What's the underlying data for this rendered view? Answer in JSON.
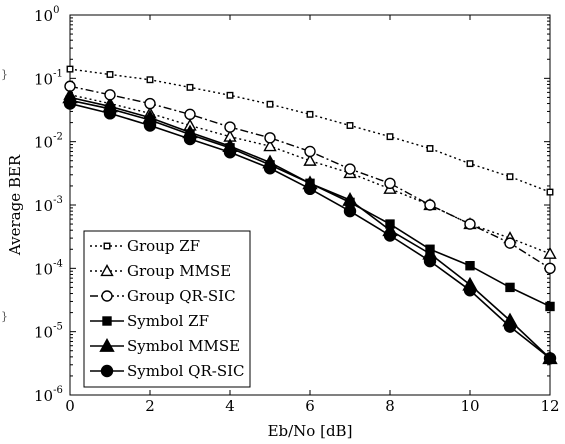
{
  "chart_data": {
    "type": "line",
    "xlabel": "Eb/No [dB]",
    "ylabel": "Average BER",
    "xlim": [
      0,
      12
    ],
    "ylim": [
      1e-06,
      1
    ],
    "yscale": "log",
    "grid": false,
    "legend_placement": "bottom-left",
    "xticks": [
      0,
      2,
      4,
      6,
      8,
      10,
      12
    ],
    "yticks": [
      {
        "base": "10",
        "exp": "-6",
        "value": 1e-06
      },
      {
        "base": "10",
        "exp": "-5",
        "value": 1e-05
      },
      {
        "base": "10",
        "exp": "-4",
        "value": 0.0001
      },
      {
        "base": "10",
        "exp": "-3",
        "value": 0.001
      },
      {
        "base": "10",
        "exp": "-2",
        "value": 0.01
      },
      {
        "base": "10",
        "exp": "-1",
        "value": 0.1
      },
      {
        "base": "10",
        "exp": "0",
        "value": 1
      }
    ],
    "x": [
      0,
      1,
      2,
      3,
      4,
      5,
      6,
      7,
      8,
      9,
      10,
      11,
      12
    ],
    "series": [
      {
        "name": "Group ZF",
        "line": "dotted",
        "marker": "square-open",
        "values": [
          0.14,
          0.115,
          0.095,
          0.072,
          0.054,
          0.039,
          0.027,
          0.018,
          0.012,
          0.0078,
          0.0045,
          0.0028,
          0.0016
        ]
      },
      {
        "name": "Group MMSE",
        "line": "dotted",
        "marker": "triangle-open",
        "values": [
          0.055,
          0.04,
          0.028,
          0.018,
          0.012,
          0.0085,
          0.005,
          0.0032,
          0.0018,
          0.001,
          0.0005,
          0.0003,
          0.00017
        ]
      },
      {
        "name": "Group QR-SIC",
        "line": "dashdot",
        "marker": "circle-open",
        "values": [
          0.075,
          0.055,
          0.04,
          0.027,
          0.017,
          0.0115,
          0.007,
          0.0037,
          0.0022,
          0.001,
          0.0005,
          0.00025,
          0.0001
        ]
      },
      {
        "name": "Symbol ZF",
        "line": "solid",
        "marker": "square-filled",
        "values": [
          0.045,
          0.033,
          0.022,
          0.013,
          0.008,
          0.0043,
          0.0022,
          0.0011,
          0.0005,
          0.0002,
          0.00011,
          5e-05,
          2.5e-05
        ]
      },
      {
        "name": "Symbol MMSE",
        "line": "solid",
        "marker": "triangle-filled",
        "values": [
          0.05,
          0.036,
          0.024,
          0.014,
          0.0085,
          0.0047,
          0.0022,
          0.0012,
          0.0004,
          0.00017,
          5.5e-05,
          1.5e-05,
          3.8e-06
        ]
      },
      {
        "name": "Symbol QR-SIC",
        "line": "solid",
        "marker": "circle-filled",
        "values": [
          0.04,
          0.028,
          0.018,
          0.011,
          0.0068,
          0.0038,
          0.0018,
          0.0008,
          0.00033,
          0.00013,
          4.5e-05,
          1.2e-05,
          3.8e-06
        ]
      }
    ]
  },
  "stray_glyphs": [
    "}",
    "}"
  ]
}
